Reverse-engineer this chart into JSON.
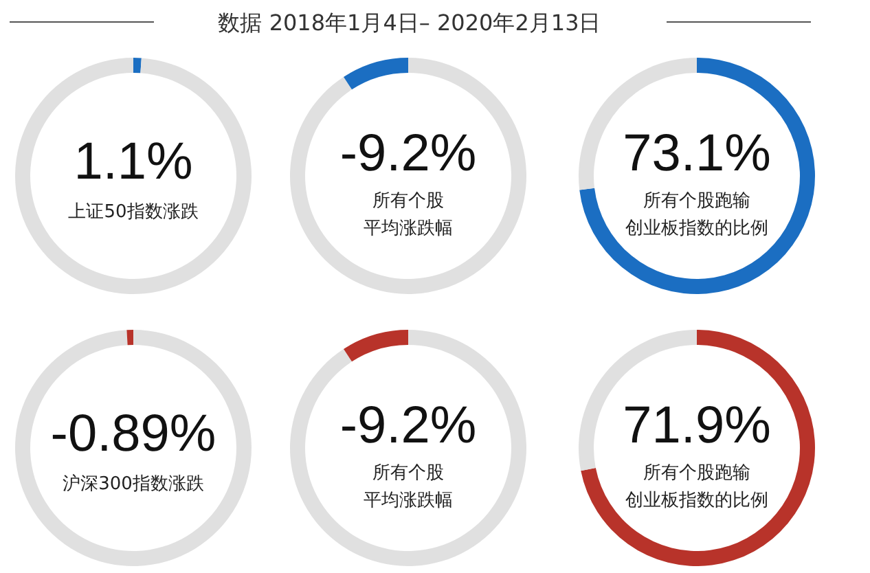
{
  "chart_data": [
    {
      "type": "donut",
      "categories": [
        null,
        null
      ],
      "values": [
        1.1,
        98.9
      ],
      "colors": [
        "#1b6ec2",
        "#e0e0e0"
      ],
      "annotations": [
        "1.1%",
        "上证50指数涨跌"
      ]
    },
    {
      "type": "donut",
      "title": "数据 2018年1月4日– 2020年2月13日",
      "categories": [
        null,
        null
      ],
      "values": [
        90.8,
        9.2
      ],
      "colors": [
        "#e0e0e0",
        "#1b6ec2"
      ],
      "annotations": [
        "-9.2%",
        "所有个股",
        "平均涨跌幅"
      ]
    },
    {
      "type": "donut",
      "categories": [
        null,
        null
      ],
      "values": [
        73.1,
        26.9
      ],
      "colors": [
        "#1b6ec2",
        "#e0e0e0"
      ],
      "annotations": [
        "73.1%",
        "所有个股跑输",
        "创业板指数的比例"
      ]
    },
    {
      "type": "donut",
      "categories": [
        null,
        null
      ],
      "values": [
        99.11,
        0.89
      ],
      "colors": [
        "#e0e0e0",
        "#b8332a"
      ],
      "annotations": [
        "-0.89%",
        "沪深300指数涨跌"
      ]
    },
    {
      "type": "donut",
      "categories": [
        null,
        null
      ],
      "values": [
        90.8,
        9.2
      ],
      "colors": [
        "#e0e0e0",
        "#b8332a"
      ],
      "annotations": [
        "-9.2%",
        "所有个股",
        "平均涨跌幅"
      ]
    },
    {
      "type": "donut",
      "categories": [
        null,
        null
      ],
      "values": [
        71.9,
        28.1
      ],
      "colors": [
        "#b8332a",
        "#e0e0e0"
      ],
      "annotations": [
        "71.9%",
        "所有个股跑输",
        "创业板指数的比例"
      ]
    }
  ]
}
